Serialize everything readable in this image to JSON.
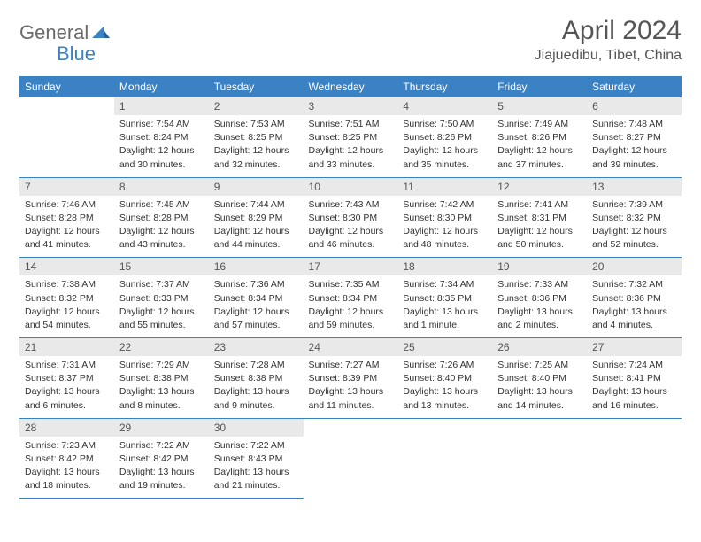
{
  "logo": {
    "gen": "General",
    "blue": "Blue"
  },
  "header": {
    "month": "April 2024",
    "location": "Jiajuedibu, Tibet, China"
  },
  "colors": {
    "accent": "#3b82c4",
    "daybar": "#e9e9e9",
    "text": "#333333"
  },
  "weekdays": [
    "Sunday",
    "Monday",
    "Tuesday",
    "Wednesday",
    "Thursday",
    "Friday",
    "Saturday"
  ],
  "calendar": {
    "type": "table",
    "columns": 7,
    "rows": 5,
    "start_offset": 1,
    "days": [
      {
        "n": "1",
        "sr": "Sunrise: 7:54 AM",
        "ss": "Sunset: 8:24 PM",
        "d1": "Daylight: 12 hours",
        "d2": "and 30 minutes."
      },
      {
        "n": "2",
        "sr": "Sunrise: 7:53 AM",
        "ss": "Sunset: 8:25 PM",
        "d1": "Daylight: 12 hours",
        "d2": "and 32 minutes."
      },
      {
        "n": "3",
        "sr": "Sunrise: 7:51 AM",
        "ss": "Sunset: 8:25 PM",
        "d1": "Daylight: 12 hours",
        "d2": "and 33 minutes."
      },
      {
        "n": "4",
        "sr": "Sunrise: 7:50 AM",
        "ss": "Sunset: 8:26 PM",
        "d1": "Daylight: 12 hours",
        "d2": "and 35 minutes."
      },
      {
        "n": "5",
        "sr": "Sunrise: 7:49 AM",
        "ss": "Sunset: 8:26 PM",
        "d1": "Daylight: 12 hours",
        "d2": "and 37 minutes."
      },
      {
        "n": "6",
        "sr": "Sunrise: 7:48 AM",
        "ss": "Sunset: 8:27 PM",
        "d1": "Daylight: 12 hours",
        "d2": "and 39 minutes."
      },
      {
        "n": "7",
        "sr": "Sunrise: 7:46 AM",
        "ss": "Sunset: 8:28 PM",
        "d1": "Daylight: 12 hours",
        "d2": "and 41 minutes."
      },
      {
        "n": "8",
        "sr": "Sunrise: 7:45 AM",
        "ss": "Sunset: 8:28 PM",
        "d1": "Daylight: 12 hours",
        "d2": "and 43 minutes."
      },
      {
        "n": "9",
        "sr": "Sunrise: 7:44 AM",
        "ss": "Sunset: 8:29 PM",
        "d1": "Daylight: 12 hours",
        "d2": "and 44 minutes."
      },
      {
        "n": "10",
        "sr": "Sunrise: 7:43 AM",
        "ss": "Sunset: 8:30 PM",
        "d1": "Daylight: 12 hours",
        "d2": "and 46 minutes."
      },
      {
        "n": "11",
        "sr": "Sunrise: 7:42 AM",
        "ss": "Sunset: 8:30 PM",
        "d1": "Daylight: 12 hours",
        "d2": "and 48 minutes."
      },
      {
        "n": "12",
        "sr": "Sunrise: 7:41 AM",
        "ss": "Sunset: 8:31 PM",
        "d1": "Daylight: 12 hours",
        "d2": "and 50 minutes."
      },
      {
        "n": "13",
        "sr": "Sunrise: 7:39 AM",
        "ss": "Sunset: 8:32 PM",
        "d1": "Daylight: 12 hours",
        "d2": "and 52 minutes."
      },
      {
        "n": "14",
        "sr": "Sunrise: 7:38 AM",
        "ss": "Sunset: 8:32 PM",
        "d1": "Daylight: 12 hours",
        "d2": "and 54 minutes."
      },
      {
        "n": "15",
        "sr": "Sunrise: 7:37 AM",
        "ss": "Sunset: 8:33 PM",
        "d1": "Daylight: 12 hours",
        "d2": "and 55 minutes."
      },
      {
        "n": "16",
        "sr": "Sunrise: 7:36 AM",
        "ss": "Sunset: 8:34 PM",
        "d1": "Daylight: 12 hours",
        "d2": "and 57 minutes."
      },
      {
        "n": "17",
        "sr": "Sunrise: 7:35 AM",
        "ss": "Sunset: 8:34 PM",
        "d1": "Daylight: 12 hours",
        "d2": "and 59 minutes."
      },
      {
        "n": "18",
        "sr": "Sunrise: 7:34 AM",
        "ss": "Sunset: 8:35 PM",
        "d1": "Daylight: 13 hours",
        "d2": "and 1 minute."
      },
      {
        "n": "19",
        "sr": "Sunrise: 7:33 AM",
        "ss": "Sunset: 8:36 PM",
        "d1": "Daylight: 13 hours",
        "d2": "and 2 minutes."
      },
      {
        "n": "20",
        "sr": "Sunrise: 7:32 AM",
        "ss": "Sunset: 8:36 PM",
        "d1": "Daylight: 13 hours",
        "d2": "and 4 minutes."
      },
      {
        "n": "21",
        "sr": "Sunrise: 7:31 AM",
        "ss": "Sunset: 8:37 PM",
        "d1": "Daylight: 13 hours",
        "d2": "and 6 minutes."
      },
      {
        "n": "22",
        "sr": "Sunrise: 7:29 AM",
        "ss": "Sunset: 8:38 PM",
        "d1": "Daylight: 13 hours",
        "d2": "and 8 minutes."
      },
      {
        "n": "23",
        "sr": "Sunrise: 7:28 AM",
        "ss": "Sunset: 8:38 PM",
        "d1": "Daylight: 13 hours",
        "d2": "and 9 minutes."
      },
      {
        "n": "24",
        "sr": "Sunrise: 7:27 AM",
        "ss": "Sunset: 8:39 PM",
        "d1": "Daylight: 13 hours",
        "d2": "and 11 minutes."
      },
      {
        "n": "25",
        "sr": "Sunrise: 7:26 AM",
        "ss": "Sunset: 8:40 PM",
        "d1": "Daylight: 13 hours",
        "d2": "and 13 minutes."
      },
      {
        "n": "26",
        "sr": "Sunrise: 7:25 AM",
        "ss": "Sunset: 8:40 PM",
        "d1": "Daylight: 13 hours",
        "d2": "and 14 minutes."
      },
      {
        "n": "27",
        "sr": "Sunrise: 7:24 AM",
        "ss": "Sunset: 8:41 PM",
        "d1": "Daylight: 13 hours",
        "d2": "and 16 minutes."
      },
      {
        "n": "28",
        "sr": "Sunrise: 7:23 AM",
        "ss": "Sunset: 8:42 PM",
        "d1": "Daylight: 13 hours",
        "d2": "and 18 minutes."
      },
      {
        "n": "29",
        "sr": "Sunrise: 7:22 AM",
        "ss": "Sunset: 8:42 PM",
        "d1": "Daylight: 13 hours",
        "d2": "and 19 minutes."
      },
      {
        "n": "30",
        "sr": "Sunrise: 7:22 AM",
        "ss": "Sunset: 8:43 PM",
        "d1": "Daylight: 13 hours",
        "d2": "and 21 minutes."
      }
    ]
  }
}
